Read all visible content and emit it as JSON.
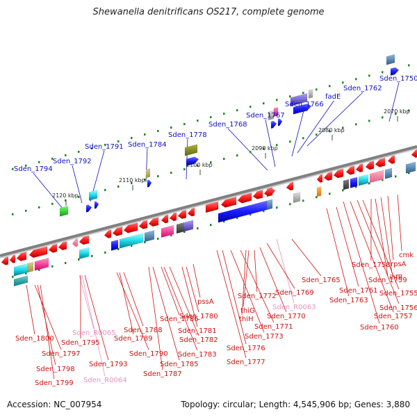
{
  "title": "Shewanella denitrificans OS217, complete genome",
  "footer": {
    "accession": "Accession: NC_007954",
    "topology": "Topology: circular; Length: 4,545,906 bp; Genes: 3,880"
  },
  "colors": {
    "backbone": "#808080",
    "top_label": "#1010c0",
    "bottom_label": "#d01010",
    "rna_label": "#e890c0",
    "tick": "#1a8a1a"
  },
  "kbp_ticks": [
    "2120 kbp",
    "2110 kbp",
    "2100 kbp",
    "2090 kbp",
    "2080 kbp",
    "2070 kbp"
  ],
  "top_labels": [
    "Sden_1794",
    "Sden_1792",
    "Sden_1791",
    "Sden_1784",
    "Sden_1778",
    "Sden_1768",
    "Sden_1767",
    "Sden_1766",
    "fadE",
    "Sden_1762",
    "Sden_1750"
  ],
  "bottom_labels": [
    "Sden_1800",
    "Sden_1797",
    "Sden_1798",
    "Sden_1799",
    "Sden_R0065",
    "Sden_1795",
    "Sden_1793",
    "Sden_R0064",
    "Sden_1788",
    "Sden_1789",
    "Sden_1790",
    "Sden_1786",
    "Sden_1787",
    "Sden_1785",
    "Sden_1783",
    "Sden_1782",
    "Sden_1781",
    "Sden_1780",
    "pssA",
    "Sden_1777",
    "Sden_1776",
    "Sden_1773",
    "Sden_1771",
    "thiH",
    "thiG",
    "Sden_1772",
    "Sden_1770",
    "Sden_R0063",
    "Sden_1769",
    "Sden_1765",
    "Sden_1763",
    "Sden_1761",
    "Sden_1760",
    "Sden_1757",
    "Sden_1756",
    "Sden_1755",
    "Sden_1758",
    "Sden_1759",
    "ihfB",
    "rpsA",
    "cmk"
  ]
}
